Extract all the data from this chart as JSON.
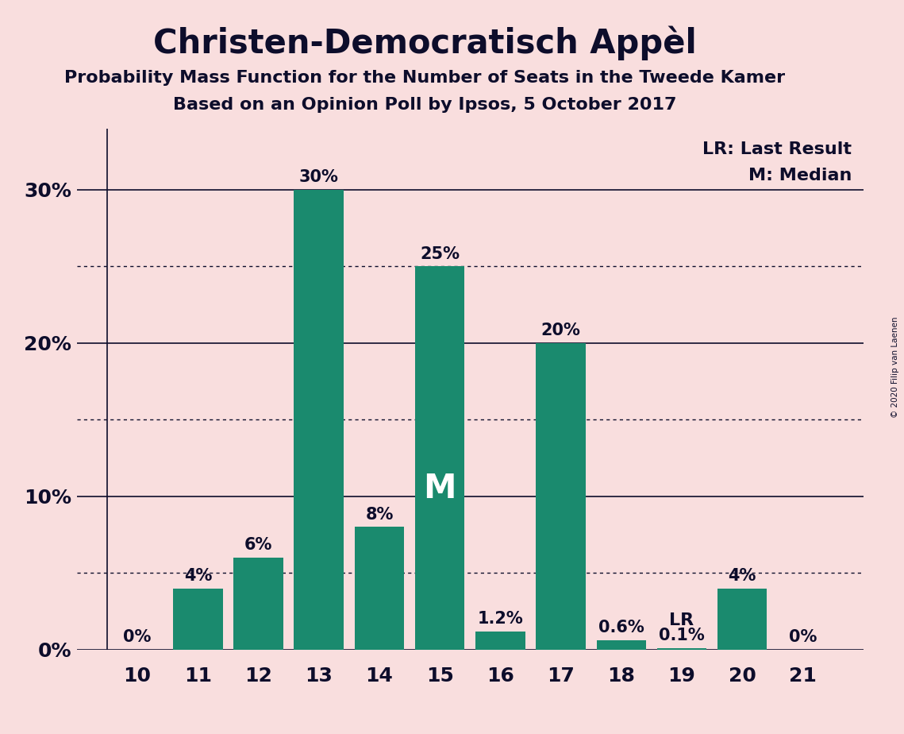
{
  "title": "Christen-Democratisch Appèl",
  "subtitle1": "Probability Mass Function for the Number of Seats in the Tweede Kamer",
  "subtitle2": "Based on an Opinion Poll by Ipsos, 5 October 2017",
  "copyright": "© 2020 Filip van Laenen",
  "categories": [
    10,
    11,
    12,
    13,
    14,
    15,
    16,
    17,
    18,
    19,
    20,
    21
  ],
  "values": [
    0.0,
    4.0,
    6.0,
    30.0,
    8.0,
    25.0,
    1.2,
    20.0,
    0.6,
    0.1,
    4.0,
    0.0
  ],
  "labels": [
    "0%",
    "4%",
    "6%",
    "30%",
    "8%",
    "25%",
    "1.2%",
    "20%",
    "0.6%",
    "0.1%",
    "4%",
    "0%"
  ],
  "bar_color": "#1a8a6e",
  "background_color": "#f9dede",
  "text_color": "#0d0d2b",
  "median_bar": 15,
  "last_result_bar": 19,
  "legend_lr": "LR: Last Result",
  "legend_m": "M: Median",
  "yticks": [
    0,
    10,
    20,
    30
  ],
  "ylim": [
    0,
    34
  ],
  "solid_gridlines": [
    10,
    20,
    30
  ],
  "dotted_gridlines": [
    5,
    15,
    25
  ]
}
